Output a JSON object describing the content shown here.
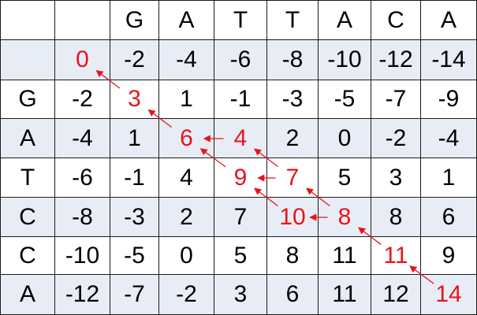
{
  "column_labels": [
    "",
    "",
    "G",
    "A",
    "T",
    "T",
    "A",
    "C",
    "A"
  ],
  "row_labels": [
    "",
    "G",
    "A",
    "T",
    "C",
    "C",
    "A"
  ],
  "scores": [
    [
      0,
      -2,
      -4,
      -6,
      -8,
      -10,
      -12,
      -14
    ],
    [
      -2,
      3,
      1,
      -1,
      -3,
      -5,
      -7,
      -9
    ],
    [
      -4,
      1,
      6,
      4,
      2,
      0,
      -2,
      -4
    ],
    [
      -6,
      -1,
      4,
      9,
      7,
      5,
      3,
      1
    ],
    [
      -8,
      -3,
      2,
      7,
      10,
      8,
      8,
      6
    ],
    [
      -10,
      -5,
      0,
      5,
      8,
      11,
      11,
      9
    ],
    [
      -12,
      -7,
      -2,
      3,
      6,
      11,
      12,
      14
    ]
  ],
  "path_cells": [
    [
      0,
      0
    ],
    [
      1,
      1
    ],
    [
      2,
      2
    ],
    [
      2,
      3
    ],
    [
      3,
      3
    ],
    [
      3,
      4
    ],
    [
      4,
      4
    ],
    [
      4,
      5
    ],
    [
      5,
      6
    ],
    [
      6,
      7
    ]
  ],
  "arrows": [
    {
      "from": [
        1,
        1
      ],
      "to": [
        0,
        0
      ]
    },
    {
      "from": [
        2,
        2
      ],
      "to": [
        1,
        1
      ]
    },
    {
      "from": [
        2,
        3
      ],
      "to": [
        2,
        2
      ]
    },
    {
      "from": [
        3,
        4
      ],
      "to": [
        2,
        3
      ]
    },
    {
      "from": [
        3,
        3
      ],
      "to": [
        2,
        2
      ]
    },
    {
      "from": [
        3,
        4
      ],
      "to": [
        3,
        3
      ]
    },
    {
      "from": [
        4,
        4
      ],
      "to": [
        3,
        3
      ]
    },
    {
      "from": [
        4,
        5
      ],
      "to": [
        3,
        4
      ]
    },
    {
      "from": [
        4,
        5
      ],
      "to": [
        4,
        4
      ]
    },
    {
      "from": [
        5,
        6
      ],
      "to": [
        4,
        5
      ]
    },
    {
      "from": [
        6,
        7
      ],
      "to": [
        5,
        6
      ]
    }
  ],
  "colors": {
    "path_text": "#e8131c",
    "arrow": "#e8131c",
    "band_fill": "#e8edf5",
    "white_fill": "#ffffff",
    "border": "#1a1a1a"
  }
}
